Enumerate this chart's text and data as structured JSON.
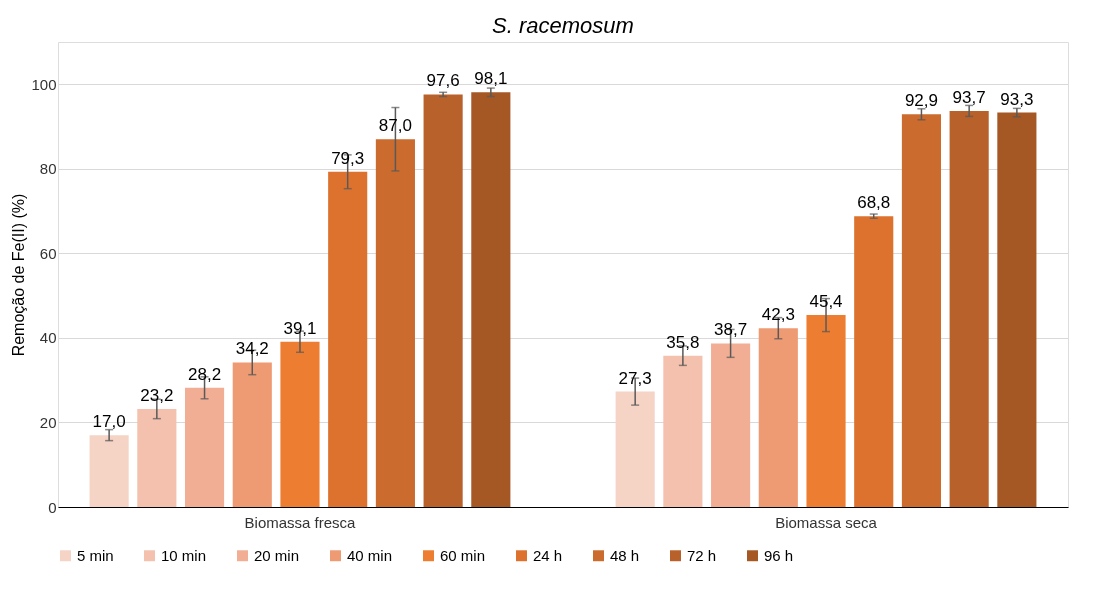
{
  "chart_data": {
    "type": "bar",
    "title": "S. racemosum",
    "ylabel": "Remoção de Fe(II) (%)",
    "categories": [
      "Biomassa fresca",
      "Biomassa seca"
    ],
    "series": [
      {
        "name": "5 min",
        "color": "#f5d3c5",
        "values": [
          17.0,
          27.3
        ],
        "errors": [
          1.3,
          3.2
        ],
        "value_labels": [
          "17,0",
          "27,3"
        ]
      },
      {
        "name": "10 min",
        "color": "#f3c1ad",
        "values": [
          23.2,
          35.8
        ],
        "errors": [
          2.3,
          2.3
        ],
        "value_labels": [
          "23,2",
          "35,8"
        ]
      },
      {
        "name": "20 min",
        "color": "#f1ae94",
        "values": [
          28.2,
          38.7
        ],
        "errors": [
          2.6,
          3.3
        ],
        "value_labels": [
          "28,2",
          "38,7"
        ]
      },
      {
        "name": "40 min",
        "color": "#ee9a73",
        "values": [
          34.2,
          42.3
        ],
        "errors": [
          2.9,
          2.5
        ],
        "value_labels": [
          "34,2",
          "42,3"
        ]
      },
      {
        "name": "60 min",
        "color": "#ed7d31",
        "values": [
          39.1,
          45.4
        ],
        "errors": [
          2.5,
          3.9
        ],
        "value_labels": [
          "39,1",
          "45,4"
        ]
      },
      {
        "name": "24 h",
        "color": "#dd722f",
        "values": [
          79.3,
          68.8
        ],
        "errors": [
          4.0,
          0.5
        ],
        "value_labels": [
          "79,3",
          "68,8"
        ]
      },
      {
        "name": "48 h",
        "color": "#cb6b2e",
        "values": [
          87.0,
          92.9
        ],
        "errors": [
          7.5,
          1.3
        ],
        "value_labels": [
          "87,0",
          "92,9"
        ]
      },
      {
        "name": "72 h",
        "color": "#b9612a",
        "values": [
          97.6,
          93.7
        ],
        "errors": [
          0.5,
          1.3
        ],
        "value_labels": [
          "97,6",
          "93,7"
        ]
      },
      {
        "name": "96 h",
        "color": "#a55724",
        "values": [
          98.1,
          93.3
        ],
        "errors": [
          1.0,
          1.0
        ],
        "value_labels": [
          "98,1",
          "93,3"
        ]
      }
    ],
    "ylim": [
      0,
      110
    ],
    "yticks": [
      0,
      20,
      40,
      60,
      80,
      100
    ],
    "grid": "y",
    "legend": "bottom"
  }
}
